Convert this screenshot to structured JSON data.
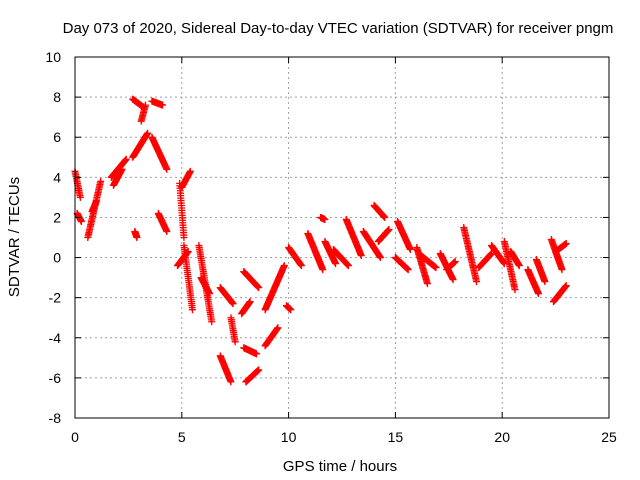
{
  "chart_data": {
    "type": "scatter",
    "title": "Day 073 of 2020, Sidereal Day-to-day VTEC variation (SDTVAR) for receiver pngm",
    "xlabel": "GPS time / hours",
    "ylabel": "SDTVAR / TECUs",
    "xlim": [
      0,
      25
    ],
    "ylim": [
      -8,
      10
    ],
    "xticks": [
      0,
      5,
      10,
      15,
      20,
      25
    ],
    "yticks": [
      -8,
      -6,
      -4,
      -2,
      0,
      2,
      4,
      6,
      8,
      10
    ],
    "grid": true,
    "marker": "+",
    "color": "#ff0000",
    "segments": [
      {
        "x0": 0.0,
        "x1": 0.25,
        "y0": 4.3,
        "y1": 3.0
      },
      {
        "x0": 0.1,
        "x1": 0.3,
        "y0": 2.2,
        "y1": 1.8
      },
      {
        "x0": 0.6,
        "x1": 1.2,
        "y0": 1.0,
        "y1": 3.8
      },
      {
        "x0": 0.8,
        "x1": 1.0,
        "y0": 2.3,
        "y1": 2.8
      },
      {
        "x0": 1.7,
        "x1": 2.4,
        "y0": 4.0,
        "y1": 4.9
      },
      {
        "x0": 1.8,
        "x1": 2.2,
        "y0": 3.6,
        "y1": 4.4
      },
      {
        "x0": 2.7,
        "x1": 3.4,
        "y0": 5.0,
        "y1": 6.2
      },
      {
        "x0": 2.7,
        "x1": 3.2,
        "y0": 7.9,
        "y1": 7.5
      },
      {
        "x0": 2.8,
        "x1": 2.9,
        "y0": 1.3,
        "y1": 1.0
      },
      {
        "x0": 3.1,
        "x1": 3.3,
        "y0": 6.8,
        "y1": 7.6
      },
      {
        "x0": 3.6,
        "x1": 4.1,
        "y0": 7.8,
        "y1": 7.6
      },
      {
        "x0": 3.6,
        "x1": 4.3,
        "y0": 6.0,
        "y1": 4.4
      },
      {
        "x0": 3.9,
        "x1": 4.3,
        "y0": 2.2,
        "y1": 1.3
      },
      {
        "x0": 4.9,
        "x1": 5.1,
        "y0": 3.7,
        "y1": 1.0
      },
      {
        "x0": 5.0,
        "x1": 5.4,
        "y0": 3.5,
        "y1": 4.3
      },
      {
        "x0": 4.8,
        "x1": 5.3,
        "y0": -0.4,
        "y1": 0.3
      },
      {
        "x0": 5.1,
        "x1": 5.5,
        "y0": 0.6,
        "y1": -2.6
      },
      {
        "x0": 5.8,
        "x1": 6.4,
        "y0": 0.6,
        "y1": -3.2
      },
      {
        "x0": 5.9,
        "x1": 6.3,
        "y0": -1.0,
        "y1": -1.8
      },
      {
        "x0": 6.8,
        "x1": 7.3,
        "y0": -4.9,
        "y1": -6.2
      },
      {
        "x0": 6.8,
        "x1": 7.4,
        "y0": -1.5,
        "y1": -2.3
      },
      {
        "x0": 7.3,
        "x1": 7.5,
        "y0": -3.0,
        "y1": -4.2
      },
      {
        "x0": 7.9,
        "x1": 8.6,
        "y0": -0.7,
        "y1": -1.5
      },
      {
        "x0": 7.9,
        "x1": 8.5,
        "y0": -4.5,
        "y1": -4.8
      },
      {
        "x0": 7.8,
        "x1": 8.2,
        "y0": -2.8,
        "y1": -2.2
      },
      {
        "x0": 8.0,
        "x1": 8.6,
        "y0": -6.2,
        "y1": -5.6
      },
      {
        "x0": 8.9,
        "x1": 9.5,
        "y0": -4.4,
        "y1": -3.5
      },
      {
        "x0": 8.9,
        "x1": 9.8,
        "y0": -2.6,
        "y1": -0.4
      },
      {
        "x0": 9.9,
        "x1": 10.1,
        "y0": -2.4,
        "y1": -2.6
      },
      {
        "x0": 10.0,
        "x1": 10.6,
        "y0": 0.5,
        "y1": -0.4
      },
      {
        "x0": 10.9,
        "x1": 11.6,
        "y0": 1.2,
        "y1": -0.6
      },
      {
        "x0": 11.5,
        "x1": 11.7,
        "y0": 2.0,
        "y1": 1.9
      },
      {
        "x0": 11.7,
        "x1": 12.2,
        "y0": 0.8,
        "y1": -0.3
      },
      {
        "x0": 12.1,
        "x1": 12.8,
        "y0": 0.4,
        "y1": -0.4
      },
      {
        "x0": 12.7,
        "x1": 13.4,
        "y0": 1.9,
        "y1": 0.1
      },
      {
        "x0": 13.5,
        "x1": 14.3,
        "y0": 1.3,
        "y1": 0.0
      },
      {
        "x0": 14.0,
        "x1": 14.5,
        "y0": 2.6,
        "y1": 2.0
      },
      {
        "x0": 14.2,
        "x1": 14.7,
        "y0": 0.8,
        "y1": 1.4
      },
      {
        "x0": 15.1,
        "x1": 15.7,
        "y0": 1.8,
        "y1": 0.4
      },
      {
        "x0": 15.0,
        "x1": 15.6,
        "y0": 0.0,
        "y1": -0.6
      },
      {
        "x0": 16.0,
        "x1": 16.5,
        "y0": 0.5,
        "y1": -1.3
      },
      {
        "x0": 16.2,
        "x1": 16.9,
        "y0": 0.1,
        "y1": -0.5
      },
      {
        "x0": 17.1,
        "x1": 17.7,
        "y0": 0.2,
        "y1": -1.1
      },
      {
        "x0": 17.4,
        "x1": 17.8,
        "y0": -0.6,
        "y1": -0.2
      },
      {
        "x0": 18.2,
        "x1": 18.8,
        "y0": 1.5,
        "y1": -1.2
      },
      {
        "x0": 18.9,
        "x1": 19.5,
        "y0": -0.5,
        "y1": 0.2
      },
      {
        "x0": 19.5,
        "x1": 20.1,
        "y0": 0.6,
        "y1": -0.3
      },
      {
        "x0": 20.1,
        "x1": 20.6,
        "y0": 0.8,
        "y1": -1.6
      },
      {
        "x0": 20.4,
        "x1": 20.8,
        "y0": 0.3,
        "y1": -0.4
      },
      {
        "x0": 21.2,
        "x1": 21.7,
        "y0": -0.6,
        "y1": -1.8
      },
      {
        "x0": 21.6,
        "x1": 22.0,
        "y0": -0.1,
        "y1": -1.2
      },
      {
        "x0": 22.3,
        "x1": 22.8,
        "y0": 0.9,
        "y1": -0.6
      },
      {
        "x0": 22.5,
        "x1": 23.0,
        "y0": 0.3,
        "y1": 0.7
      },
      {
        "x0": 22.4,
        "x1": 23.0,
        "y0": -2.2,
        "y1": -1.4
      }
    ]
  }
}
